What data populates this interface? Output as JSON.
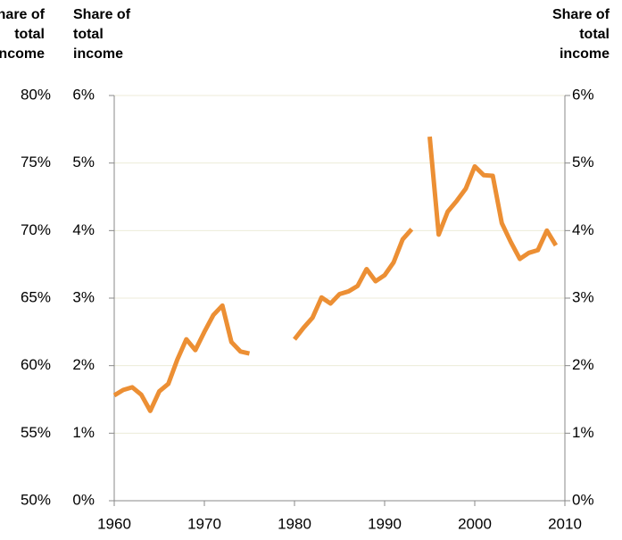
{
  "chart_data": {
    "type": "line",
    "y_label": "Share of total income",
    "y2_label": "Share of total income",
    "x": [
      1960,
      1961,
      1962,
      1963,
      1964,
      1965,
      1966,
      1967,
      1968,
      1969,
      1970,
      1971,
      1972,
      1973,
      1974,
      1975,
      1976,
      1977,
      1978,
      1979,
      1980,
      1981,
      1982,
      1983,
      1984,
      1985,
      1986,
      1987,
      1988,
      1989,
      1990,
      1991,
      1992,
      1993,
      1994,
      1995,
      1996,
      1997,
      1998,
      1999,
      2000,
      2001,
      2002,
      2003,
      2004,
      2005,
      2006,
      2007,
      2008,
      2009
    ],
    "series": [
      {
        "color": "#ec8f34",
        "values": [
          1.56,
          1.64,
          1.68,
          1.57,
          1.33,
          1.62,
          1.73,
          2.09,
          2.39,
          2.23,
          2.5,
          2.75,
          2.89,
          2.35,
          2.21,
          2.18,
          null,
          null,
          null,
          null,
          2.39,
          2.56,
          2.71,
          3.01,
          2.92,
          3.06,
          3.1,
          3.18,
          3.43,
          3.25,
          3.34,
          3.53,
          3.87,
          4.02,
          null,
          5.39,
          3.94,
          4.28,
          4.44,
          4.62,
          4.95,
          4.82,
          4.81,
          4.11,
          3.83,
          3.58,
          3.67,
          3.71,
          4.0,
          3.78
        ]
      }
    ],
    "xlim": [
      1960,
      2010
    ],
    "xticks": [
      1960,
      1970,
      1980,
      1990,
      2000,
      2010
    ],
    "ylim": [
      0,
      6
    ],
    "yticks": [
      {
        "value": 0,
        "label": "0%"
      },
      {
        "value": 1,
        "label": "1%"
      },
      {
        "value": 2,
        "label": "2%"
      },
      {
        "value": 3,
        "label": "3%"
      },
      {
        "value": 4,
        "label": "4%"
      },
      {
        "value": 5,
        "label": "5%"
      },
      {
        "value": 6,
        "label": "6%"
      }
    ],
    "y2lim": [
      50,
      80
    ],
    "y2ticks": [
      {
        "value": 50,
        "label": "50%"
      },
      {
        "value": 55,
        "label": "55%"
      },
      {
        "value": 60,
        "label": "60%"
      },
      {
        "value": 65,
        "label": "65%"
      },
      {
        "value": 70,
        "label": "70%"
      },
      {
        "value": 75,
        "label": "75%"
      },
      {
        "value": 80,
        "label": "80%"
      }
    ],
    "grid": true
  }
}
